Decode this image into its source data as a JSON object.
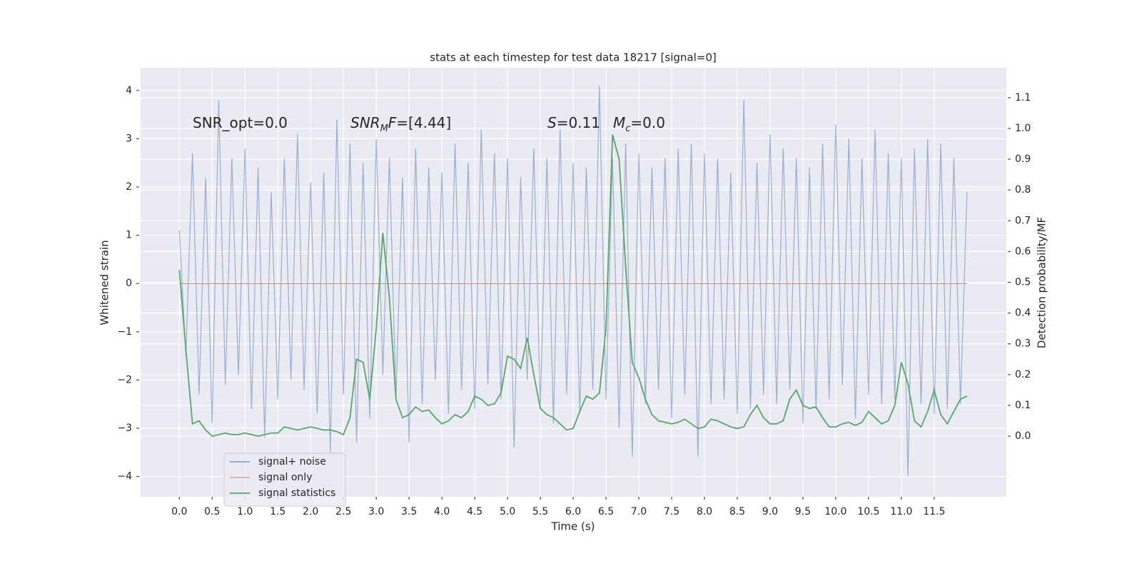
{
  "chart_data": {
    "type": "line",
    "title": "stats at each timestep for test data 18217 [signal=0]",
    "xlabel": "Time (s)",
    "ylabel": "Whitened strain",
    "y2label": "Detection probability/MF",
    "annotations": [
      [
        {
          "text": "SNR_opt=0.0",
          "style": "normal"
        }
      ],
      [
        {
          "text": "SNR",
          "style": "italic"
        },
        {
          "text": "M",
          "style": "sub"
        },
        {
          "text": "F",
          "style": "italic"
        },
        {
          "text": "=[4.44]",
          "style": "normal"
        }
      ],
      [
        {
          "text": "S",
          "style": "italic"
        },
        {
          "text": "=0.11",
          "style": "normal"
        }
      ],
      [
        {
          "text": "M",
          "style": "italic"
        },
        {
          "text": "c",
          "style": "sub"
        },
        {
          "text": "=0.0",
          "style": "normal"
        }
      ]
    ],
    "x": [
      0.0,
      0.1,
      0.2,
      0.3,
      0.4,
      0.5,
      0.6,
      0.7,
      0.8,
      0.9,
      1.0,
      1.1,
      1.2,
      1.3,
      1.4,
      1.5,
      1.6,
      1.7,
      1.8,
      1.9,
      2.0,
      2.1,
      2.2,
      2.3,
      2.4,
      2.5,
      2.6,
      2.7,
      2.8,
      2.9,
      3.0,
      3.1,
      3.2,
      3.3,
      3.4,
      3.5,
      3.6,
      3.7,
      3.8,
      3.9,
      4.0,
      4.1,
      4.2,
      4.3,
      4.4,
      4.5,
      4.6,
      4.7,
      4.8,
      4.9,
      5.0,
      5.1,
      5.2,
      5.3,
      5.4,
      5.5,
      5.6,
      5.7,
      5.8,
      5.9,
      6.0,
      6.1,
      6.2,
      6.3,
      6.4,
      6.5,
      6.6,
      6.7,
      6.8,
      6.9,
      7.0,
      7.1,
      7.2,
      7.3,
      7.4,
      7.5,
      7.6,
      7.7,
      7.8,
      7.9,
      8.0,
      8.1,
      8.2,
      8.3,
      8.4,
      8.5,
      8.6,
      8.7,
      8.8,
      8.9,
      9.0,
      9.1,
      9.2,
      9.3,
      9.4,
      9.5,
      9.6,
      9.7,
      9.8,
      9.9,
      10.0,
      10.1,
      10.2,
      10.3,
      10.4,
      10.5,
      10.6,
      10.7,
      10.8,
      10.9,
      11.0,
      11.1,
      11.2,
      11.3,
      11.4,
      11.5,
      11.6,
      11.7,
      11.8,
      11.9,
      12.0
    ],
    "series": [
      {
        "name": "signal+ noise",
        "color": "#4c72b0",
        "opacity": 0.5,
        "axis": "y",
        "values": [
          1.1,
          -1.5,
          2.7,
          -2.3,
          2.2,
          -2.9,
          3.8,
          -2.1,
          2.6,
          -1.9,
          2.8,
          -2.6,
          2.4,
          -3.2,
          1.9,
          -2.4,
          2.6,
          -2.0,
          3.1,
          -2.2,
          2.1,
          -2.7,
          2.3,
          -3.5,
          3.4,
          -2.3,
          2.9,
          -3.3,
          2.5,
          -2.8,
          3.0,
          -1.9,
          2.6,
          -2.4,
          2.2,
          -3.3,
          2.8,
          -2.5,
          2.4,
          -2.0,
          2.3,
          -2.7,
          2.9,
          -2.2,
          2.5,
          -2.6,
          3.2,
          -2.1,
          2.7,
          -2.4,
          2.6,
          -3.4,
          2.2,
          -2.0,
          2.8,
          -2.5,
          2.6,
          -2.9,
          3.2,
          -2.3,
          2.5,
          -2.7,
          2.4,
          -2.2,
          4.1,
          -2.4,
          2.6,
          -3.0,
          2.9,
          -3.6,
          2.7,
          -2.5,
          2.4,
          -2.2,
          2.6,
          -2.8,
          2.8,
          -2.3,
          2.9,
          -3.6,
          2.7,
          -2.5,
          2.6,
          -2.4,
          2.3,
          -2.7,
          3.8,
          -2.6,
          2.5,
          -2.3,
          3.1,
          -2.5,
          2.8,
          -2.2,
          2.6,
          -2.9,
          2.4,
          -2.6,
          2.9,
          -2.4,
          3.3,
          -2.1,
          3.0,
          -2.8,
          2.6,
          -2.3,
          3.2,
          -2.5,
          2.7,
          -2.4,
          2.6,
          -4.0,
          2.8,
          -2.5,
          3.0,
          -2.7,
          2.9,
          -2.6,
          2.6,
          -2.5,
          1.9
        ]
      },
      {
        "name": "signal only",
        "color": "#dd8452",
        "opacity": 1,
        "axis": "y",
        "values": [
          0,
          0,
          0,
          0,
          0,
          0,
          0,
          0,
          0,
          0,
          0,
          0,
          0,
          0,
          0,
          0,
          0,
          0,
          0,
          0,
          0,
          0,
          0,
          0,
          0,
          0,
          0,
          0,
          0,
          0,
          0,
          0,
          0,
          0,
          0,
          0,
          0,
          0,
          0,
          0,
          0,
          0,
          0,
          0,
          0,
          0,
          0,
          0,
          0,
          0,
          0,
          0,
          0,
          0,
          0,
          0,
          0,
          0,
          0,
          0,
          0,
          0,
          0,
          0,
          0,
          0,
          0,
          0,
          0,
          0,
          0,
          0,
          0,
          0,
          0,
          0,
          0,
          0,
          0,
          0,
          0,
          0,
          0,
          0,
          0,
          0,
          0,
          0,
          0,
          0,
          0,
          0,
          0,
          0,
          0,
          0,
          0,
          0,
          0,
          0,
          0,
          0,
          0,
          0,
          0,
          0,
          0,
          0,
          0,
          0,
          0,
          0,
          0,
          0,
          0,
          0,
          0,
          0,
          0,
          0,
          0
        ]
      },
      {
        "name": "signal statistics",
        "color": "#55a868",
        "opacity": 1,
        "axis": "y2",
        "values": [
          0.54,
          0.28,
          0.04,
          0.05,
          0.02,
          0,
          0.005,
          0.01,
          0.005,
          0.005,
          0.01,
          0.005,
          0,
          0.005,
          0.01,
          0.01,
          0.03,
          0.025,
          0.02,
          0.025,
          0.03,
          0.025,
          0.02,
          0.02,
          0.015,
          0.005,
          0.06,
          0.25,
          0.24,
          0.12,
          0.35,
          0.66,
          0.45,
          0.12,
          0.06,
          0.07,
          0.095,
          0.08,
          0.085,
          0.06,
          0.04,
          0.05,
          0.07,
          0.06,
          0.08,
          0.13,
          0.12,
          0.1,
          0.105,
          0.14,
          0.26,
          0.25,
          0.22,
          0.32,
          0.2,
          0.09,
          0.07,
          0.06,
          0.04,
          0.02,
          0.025,
          0.08,
          0.13,
          0.12,
          0.14,
          0.35,
          0.98,
          0.9,
          0.55,
          0.24,
          0.19,
          0.12,
          0.07,
          0.05,
          0.045,
          0.04,
          0.045,
          0.055,
          0.04,
          0.025,
          0.03,
          0.055,
          0.05,
          0.04,
          0.03,
          0.025,
          0.03,
          0.07,
          0.1,
          0.06,
          0.04,
          0.04,
          0.05,
          0.12,
          0.15,
          0.1,
          0.09,
          0.095,
          0.06,
          0.03,
          0.03,
          0.04,
          0.045,
          0.035,
          0.045,
          0.08,
          0.06,
          0.04,
          0.05,
          0.1,
          0.24,
          0.17,
          0.05,
          0.03,
          0.08,
          0.15,
          0.07,
          0.04,
          0.08,
          0.12,
          0.13
        ]
      }
    ],
    "xlim": [
      -0.59,
      12.6
    ],
    "ylim": [
      -4.42,
      4.47
    ],
    "y2lim": [
      -0.197,
      1.197
    ],
    "xticks": [
      {
        "value": 0,
        "label": "0.0"
      },
      0.5,
      {
        "value": 1,
        "label": "1.0"
      },
      1.5,
      {
        "value": 2,
        "label": "2.0"
      },
      2.5,
      {
        "value": 3,
        "label": "3.0"
      },
      3.5,
      {
        "value": 4,
        "label": "4.0"
      },
      4.5,
      {
        "value": 5,
        "label": "5.0"
      },
      5.5,
      {
        "value": 6,
        "label": "6.0"
      },
      6.5,
      {
        "value": 7,
        "label": "7.0"
      },
      7.5,
      {
        "value": 8,
        "label": "8.0"
      },
      8.5,
      {
        "value": 9,
        "label": "9.0"
      },
      9.5,
      {
        "value": 10,
        "label": "10.0"
      },
      10.5,
      {
        "value": 11,
        "label": "11.0"
      },
      11.5
    ],
    "yticks": [
      {
        "value": -4,
        "label": "−4"
      },
      {
        "value": -3,
        "label": "−3"
      },
      {
        "value": -2,
        "label": "−2"
      },
      {
        "value": -1,
        "label": "−1"
      },
      0,
      1,
      2,
      3,
      4
    ],
    "y2ticks": [
      {
        "value": 0,
        "label": "0.0"
      },
      0.1,
      0.2,
      0.3,
      0.4,
      0.5,
      0.6,
      0.7,
      0.8,
      0.9,
      {
        "value": 1,
        "label": "1.0"
      },
      1.1
    ],
    "grid": true,
    "legend": "lower left"
  }
}
